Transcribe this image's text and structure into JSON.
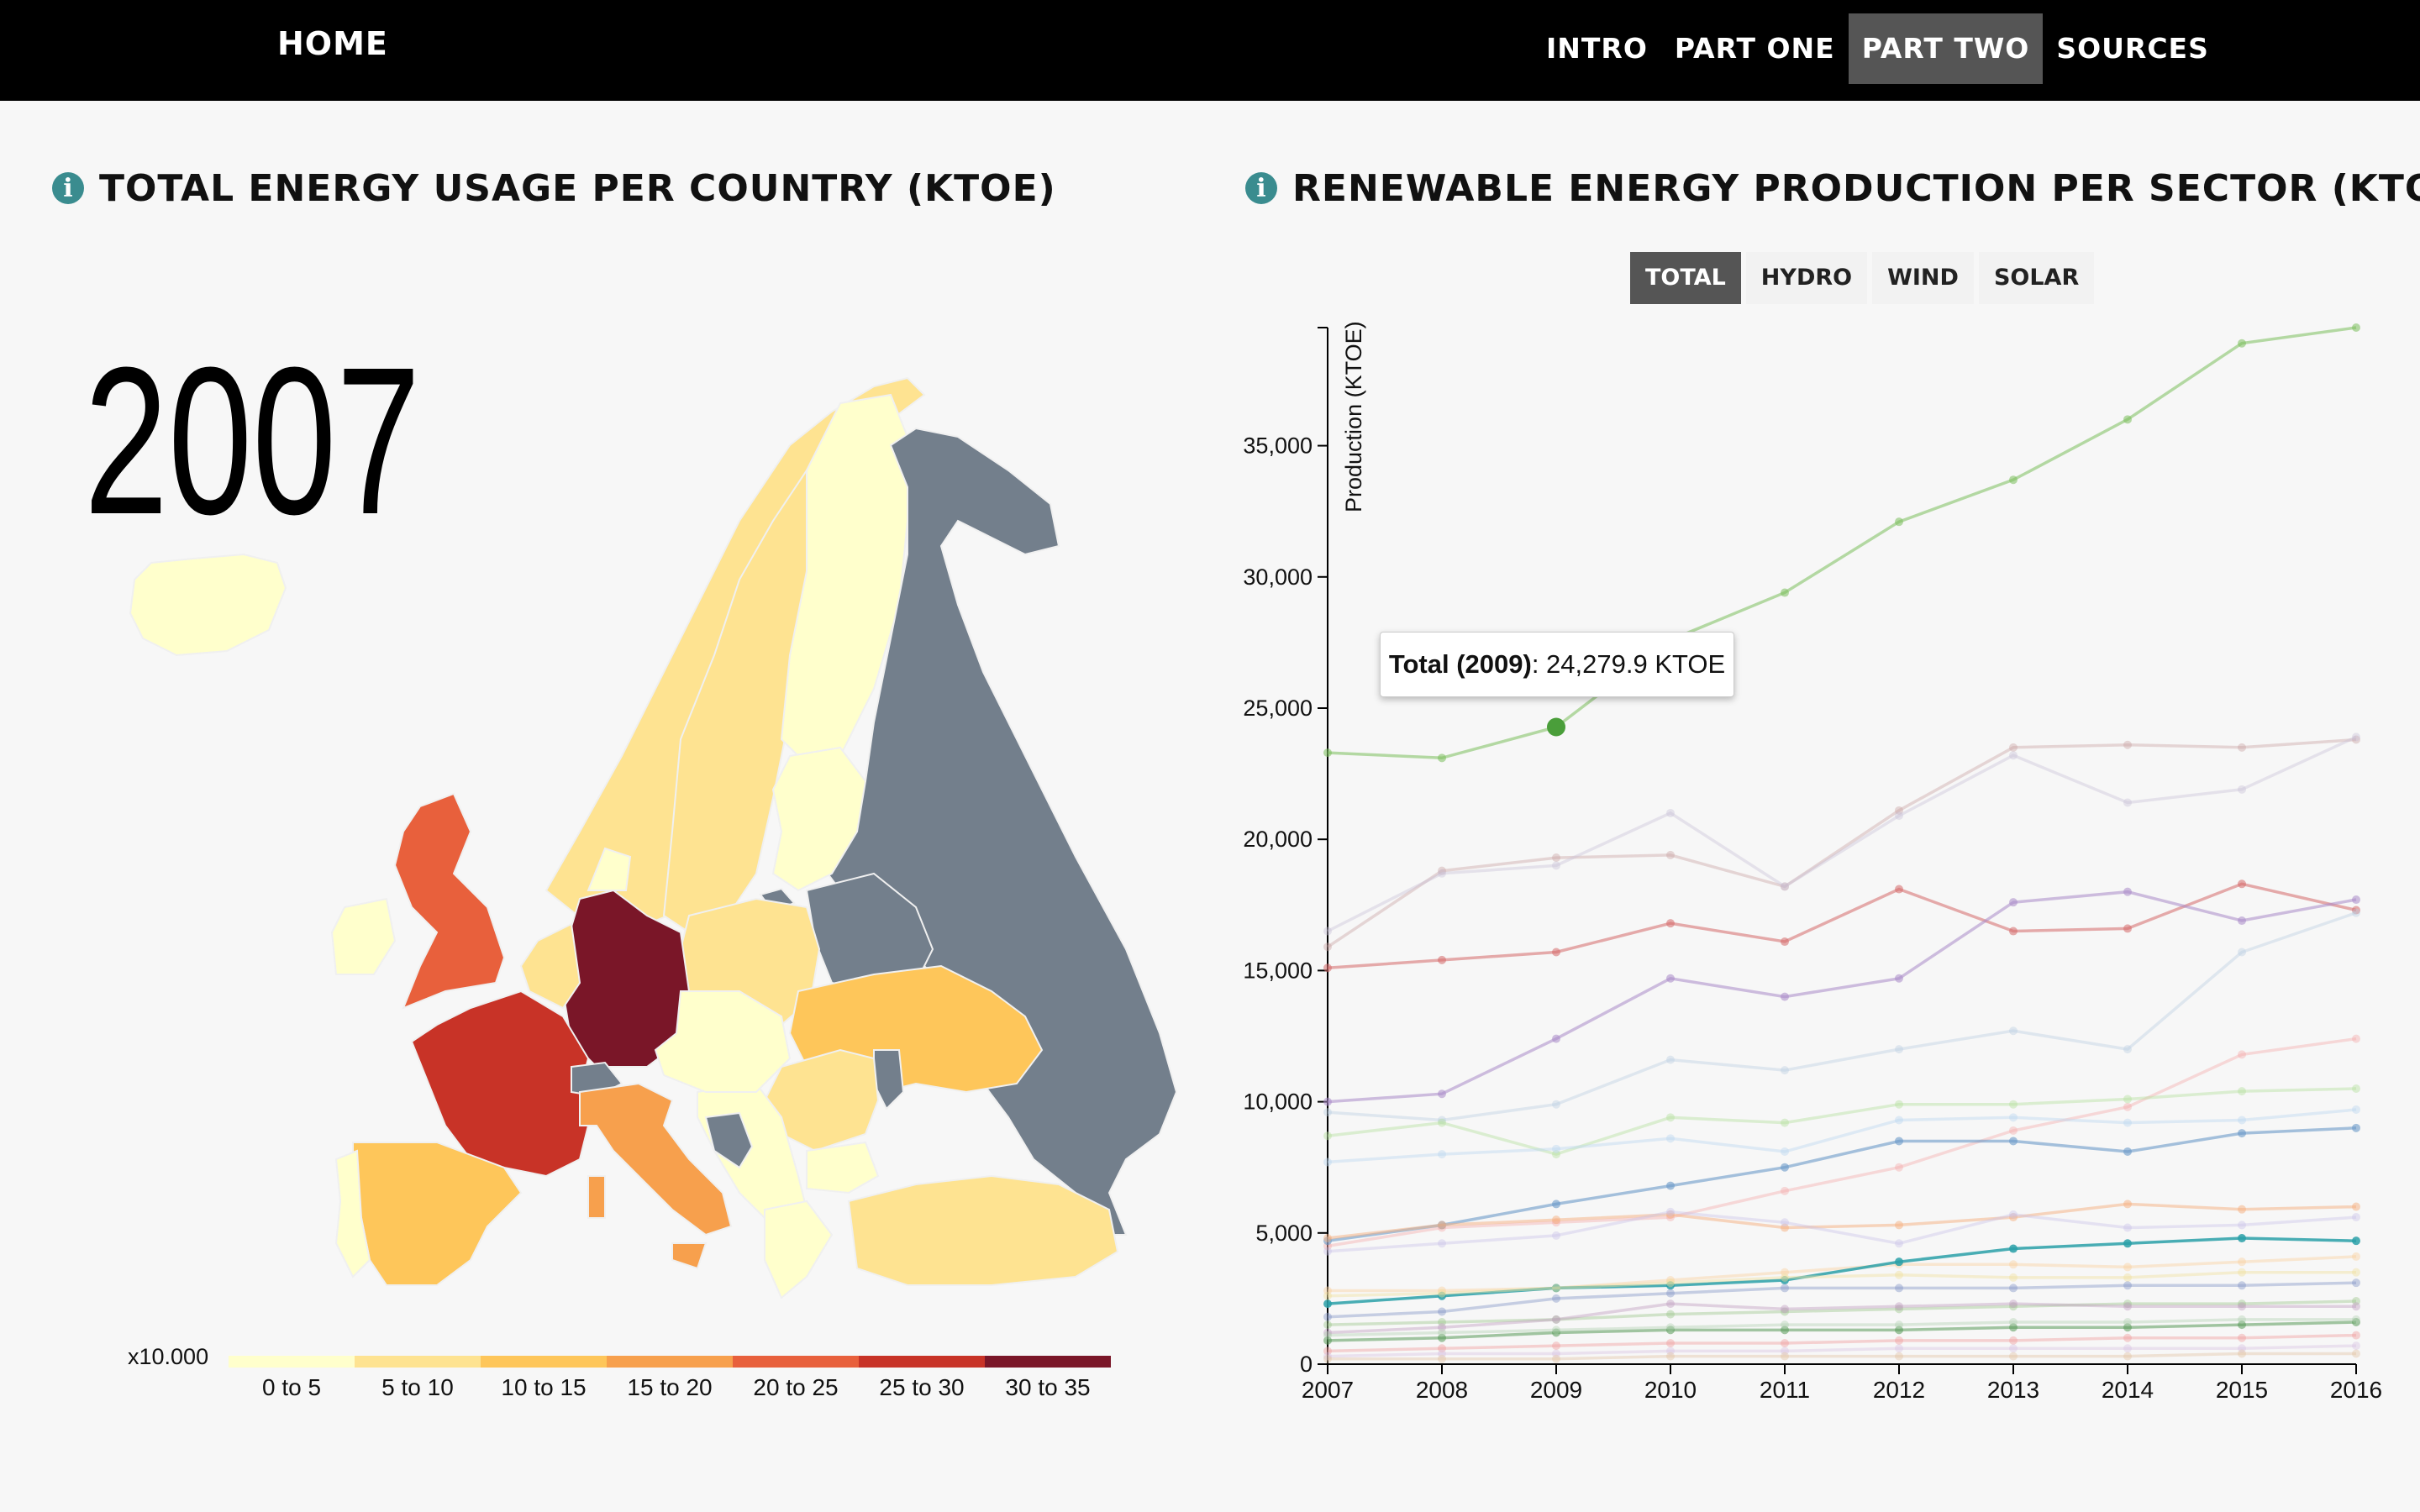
{
  "nav": {
    "home": "HOME",
    "links": [
      "INTRO",
      "PART ONE",
      "PART TWO",
      "SOURCES"
    ],
    "active": "PART TWO"
  },
  "left_panel": {
    "title": "TOTAL ENERGY USAGE PER COUNTRY (KTOE)",
    "info_icon": "info-icon",
    "year": "2007",
    "legend": {
      "prefix": "x10.000",
      "items": [
        {
          "label": "0 to 5",
          "color": "#ffffcc"
        },
        {
          "label": "5 to 10",
          "color": "#fee391"
        },
        {
          "label": "10 to 15",
          "color": "#fec65a"
        },
        {
          "label": "15 to 20",
          "color": "#f7a04d"
        },
        {
          "label": "20 to 25",
          "color": "#e8603c"
        },
        {
          "label": "25 to 30",
          "color": "#c83327"
        },
        {
          "label": "30 to 35",
          "color": "#7a1628"
        }
      ],
      "no_data_color": "#737f8c"
    }
  },
  "right_panel": {
    "title": "RENEWABLE ENERGY PRODUCTION PER SECTOR (KTOE)",
    "info_icon": "info-icon",
    "tabs": [
      "TOTAL",
      "HYDRO",
      "WIND",
      "SOLAR"
    ],
    "active_tab": "TOTAL",
    "tooltip": {
      "label": "Total (2009)",
      "value": ": 24,279.9 KTOE"
    }
  },
  "chart_data": {
    "type": "line",
    "ylabel": "Production (KTOE)",
    "x": [
      2007,
      2008,
      2009,
      2010,
      2011,
      2012,
      2013,
      2014,
      2015,
      2016
    ],
    "yticks": [
      0,
      5000,
      10000,
      15000,
      20000,
      25000,
      30000,
      35000
    ],
    "ytick_labels": [
      "0",
      "5,000",
      "10,000",
      "15,000",
      "20,000",
      "25,000",
      "30,000",
      "35,000"
    ],
    "ylim": [
      0,
      39500
    ],
    "highlight": {
      "series_index": 0,
      "x": 2009,
      "y": 24279.9
    },
    "series": [
      {
        "color": "#7cbf5c",
        "opacity": 0.55,
        "values": [
          23300,
          23100,
          24280,
          27600,
          29400,
          32100,
          33700,
          36000,
          38900,
          39500
        ]
      },
      {
        "color": "#c9a0a0",
        "opacity": 0.4,
        "values": [
          15900,
          18800,
          19300,
          19400,
          18200,
          21100,
          23500,
          23600,
          23500,
          23800
        ]
      },
      {
        "color": "#c8c0d8",
        "opacity": 0.4,
        "values": [
          16500,
          18700,
          19000,
          21000,
          18200,
          20900,
          23200,
          21400,
          21900,
          23900
        ]
      },
      {
        "color": "#d66a6a",
        "opacity": 0.55,
        "values": [
          15100,
          15400,
          15700,
          16800,
          16100,
          18100,
          16500,
          16600,
          18300,
          17300
        ]
      },
      {
        "color": "#a98ac8",
        "opacity": 0.55,
        "values": [
          10000,
          10300,
          12400,
          14700,
          14000,
          14700,
          17600,
          18000,
          16900,
          17700
        ]
      },
      {
        "color": "#b8cce0",
        "opacity": 0.4,
        "values": [
          9600,
          9300,
          9900,
          11600,
          11200,
          12000,
          12700,
          12000,
          15700,
          17200
        ]
      },
      {
        "color": "#f5a8a8",
        "opacity": 0.4,
        "values": [
          4500,
          5200,
          5400,
          5600,
          6600,
          7500,
          8900,
          9800,
          11800,
          12400
        ]
      },
      {
        "color": "#b6e0a0",
        "opacity": 0.45,
        "values": [
          8700,
          9200,
          8000,
          9400,
          9200,
          9900,
          9900,
          10100,
          10400,
          10500
        ]
      },
      {
        "color": "#bcd8f0",
        "opacity": 0.45,
        "values": [
          7700,
          8000,
          8200,
          8600,
          8100,
          9300,
          9400,
          9200,
          9300,
          9700
        ]
      },
      {
        "color": "#6a9ac8",
        "opacity": 0.6,
        "values": [
          4700,
          5300,
          6100,
          6800,
          7500,
          8500,
          8500,
          8100,
          8800,
          9000
        ]
      },
      {
        "color": "#f5b080",
        "opacity": 0.5,
        "values": [
          4800,
          5300,
          5500,
          5700,
          5200,
          5300,
          5600,
          6100,
          5900,
          6000
        ]
      },
      {
        "color": "#c8c0e8",
        "opacity": 0.4,
        "values": [
          4300,
          4600,
          4900,
          5800,
          5400,
          4600,
          5700,
          5200,
          5300,
          5600
        ]
      },
      {
        "color": "#f8d0a0",
        "opacity": 0.45,
        "values": [
          2800,
          2800,
          2900,
          3200,
          3500,
          3800,
          3800,
          3700,
          3900,
          4100
        ]
      },
      {
        "color": "#2aa0a8",
        "opacity": 0.85,
        "values": [
          2300,
          2600,
          2900,
          3000,
          3200,
          3900,
          4400,
          4600,
          4800,
          4700
        ]
      },
      {
        "color": "#f0e0a0",
        "opacity": 0.45,
        "values": [
          2600,
          2700,
          2900,
          3100,
          3300,
          3400,
          3300,
          3300,
          3500,
          3500
        ]
      },
      {
        "color": "#8898c8",
        "opacity": 0.45,
        "values": [
          1800,
          2000,
          2500,
          2700,
          2900,
          2900,
          2900,
          3000,
          3000,
          3100
        ]
      },
      {
        "color": "#a0c890",
        "opacity": 0.45,
        "values": [
          1500,
          1600,
          1700,
          1900,
          2000,
          2100,
          2200,
          2300,
          2300,
          2400
        ]
      },
      {
        "color": "#c0a0c0",
        "opacity": 0.45,
        "values": [
          1200,
          1400,
          1700,
          2300,
          2100,
          2200,
          2300,
          2200,
          2200,
          2200
        ]
      },
      {
        "color": "#5a9a5a",
        "opacity": 0.55,
        "values": [
          900,
          1000,
          1200,
          1300,
          1300,
          1300,
          1400,
          1400,
          1500,
          1600
        ]
      },
      {
        "color": "#b0d0b0",
        "opacity": 0.4,
        "values": [
          1100,
          1200,
          1300,
          1400,
          1500,
          1500,
          1600,
          1600,
          1700,
          1700
        ]
      },
      {
        "color": "#f0a0a0",
        "opacity": 0.45,
        "values": [
          500,
          600,
          700,
          800,
          800,
          900,
          900,
          1000,
          1000,
          1100
        ]
      },
      {
        "color": "#d8c0e0",
        "opacity": 0.4,
        "values": [
          300,
          400,
          400,
          500,
          500,
          600,
          600,
          600,
          600,
          700
        ]
      },
      {
        "color": "#e0c0a0",
        "opacity": 0.4,
        "values": [
          200,
          200,
          200,
          300,
          300,
          300,
          300,
          300,
          400,
          400
        ]
      }
    ]
  }
}
